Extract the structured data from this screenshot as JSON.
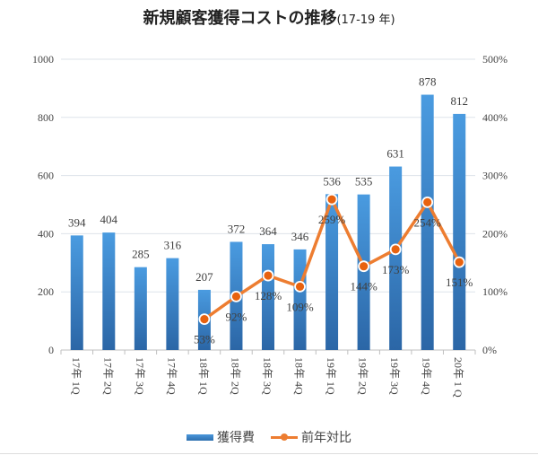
{
  "chart_data": {
    "type": "bar+line",
    "title": "新規顧客獲得コストの推移",
    "title_suffix": "(17-19 年)",
    "categories": [
      "17年 1Q",
      "17年 2Q",
      "17年 3Q",
      "17年 4Q",
      "18年 1Q",
      "18年 2Q",
      "18年 3Q",
      "18年 4Q",
      "19年 1Q",
      "19年 2Q",
      "19年 3Q",
      "19年 4Q",
      "20年 1 Q"
    ],
    "series": [
      {
        "name": "獲得費",
        "type": "bar",
        "axis": "left",
        "color": "#3a86d0",
        "values": [
          394,
          404,
          285,
          316,
          207,
          372,
          364,
          346,
          536,
          535,
          631,
          878,
          812
        ],
        "labels": [
          "394",
          "404",
          "285",
          "316",
          "207",
          "372",
          "364",
          "346",
          "536",
          "535",
          "631",
          "878",
          "812"
        ]
      },
      {
        "name": "前年対比",
        "type": "line",
        "axis": "right",
        "color": "#ed7d31",
        "values": [
          null,
          null,
          null,
          null,
          53,
          92,
          128,
          109,
          259,
          144,
          173,
          254,
          151
        ],
        "labels": [
          "",
          "",
          "",
          "",
          "53%",
          "92%",
          "128%",
          "109%",
          "259%",
          "144%",
          "173%",
          "254%",
          "151%"
        ]
      }
    ],
    "left_axis": {
      "range": [
        0,
        1000
      ],
      "ticks": [
        "0",
        "200",
        "400",
        "600",
        "800",
        "1000"
      ]
    },
    "right_axis": {
      "range": [
        0,
        500
      ],
      "ticks": [
        "0%",
        "100%",
        "200%",
        "300%",
        "400%",
        "500%"
      ]
    },
    "grid": true,
    "legend_position": "bottom"
  }
}
